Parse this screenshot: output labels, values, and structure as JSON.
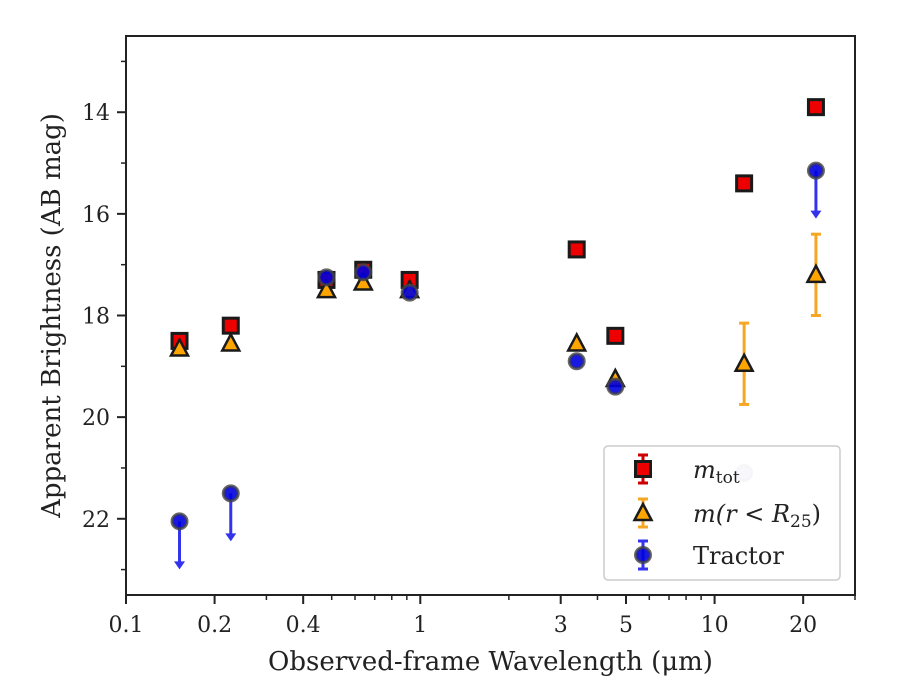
{
  "chart_data": {
    "type": "scatter",
    "xlabel": "Observed-frame Wavelength (μm)",
    "ylabel": "Apparent Brightness (AB mag)",
    "xscale": "log",
    "xlim": [
      0.1,
      30
    ],
    "ylim": [
      23.5,
      12.5
    ],
    "y_inverted": true,
    "xticks": [
      {
        "value": 0.1,
        "label": "0.1"
      },
      {
        "value": 0.2,
        "label": "0.2"
      },
      {
        "value": 0.4,
        "label": "0.4"
      },
      {
        "value": 1,
        "label": "1"
      },
      {
        "value": 3,
        "label": "3"
      },
      {
        "value": 5,
        "label": "5"
      },
      {
        "value": 10,
        "label": "10"
      },
      {
        "value": 20,
        "label": "20"
      }
    ],
    "yticks": [
      {
        "value": 14,
        "label": "14"
      },
      {
        "value": 16,
        "label": "16"
      },
      {
        "value": 18,
        "label": "18"
      },
      {
        "value": 20,
        "label": "20"
      },
      {
        "value": 22,
        "label": "22"
      }
    ],
    "grid": false,
    "legend_position": "lower-right",
    "series": [
      {
        "name": "m_tot",
        "legend_label": "m",
        "legend_sub": "tot",
        "marker": "square",
        "color": "#ee0000",
        "edge": "#1a1a1a",
        "points": [
          {
            "x": 0.152,
            "y": 18.5
          },
          {
            "x": 0.227,
            "y": 18.2
          },
          {
            "x": 0.48,
            "y": 17.3
          },
          {
            "x": 0.64,
            "y": 17.1
          },
          {
            "x": 0.92,
            "y": 17.3
          },
          {
            "x": 3.4,
            "y": 16.7
          },
          {
            "x": 4.6,
            "y": 18.4
          },
          {
            "x": 12.6,
            "y": 15.4
          },
          {
            "x": 22.1,
            "y": 13.9
          }
        ]
      },
      {
        "name": "m(r<R25)",
        "legend_label": "m(r < R",
        "legend_sub": "25",
        "legend_close": ")",
        "marker": "triangle",
        "color": "#ffa500",
        "edge": "#1a1a1a",
        "points": [
          {
            "x": 0.152,
            "y": 18.65
          },
          {
            "x": 0.227,
            "y": 18.55
          },
          {
            "x": 0.48,
            "y": 17.5
          },
          {
            "x": 0.64,
            "y": 17.35
          },
          {
            "x": 0.92,
            "y": 17.5
          },
          {
            "x": 3.4,
            "y": 18.55
          },
          {
            "x": 4.6,
            "y": 19.25
          },
          {
            "x": 12.6,
            "y": 18.95,
            "yerr": 0.8
          },
          {
            "x": 22.1,
            "y": 17.2,
            "yerr": 0.8
          }
        ]
      },
      {
        "name": "Tractor",
        "legend_label": "Tractor",
        "marker": "circle",
        "color": "#0000dd",
        "edge": "#444444",
        "points": [
          {
            "x": 0.152,
            "y": 22.05,
            "upper_limit": true
          },
          {
            "x": 0.227,
            "y": 21.5,
            "upper_limit": true
          },
          {
            "x": 0.48,
            "y": 17.25
          },
          {
            "x": 0.64,
            "y": 17.15
          },
          {
            "x": 0.92,
            "y": 17.55
          },
          {
            "x": 3.4,
            "y": 18.9
          },
          {
            "x": 4.6,
            "y": 19.4
          },
          {
            "x": 12.6,
            "y": 21.1
          },
          {
            "x": 22.1,
            "y": 15.15,
            "upper_limit": true
          }
        ]
      }
    ]
  }
}
